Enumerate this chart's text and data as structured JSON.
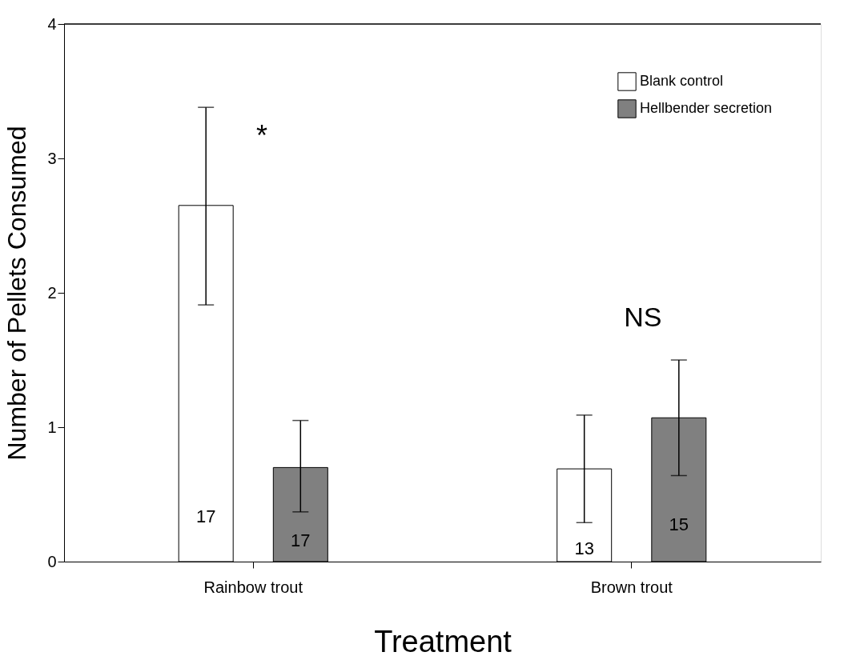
{
  "chart_data": {
    "type": "bar",
    "xlabel": "Treatment",
    "ylabel": "Number of Pellets Consumed",
    "categories": [
      "Rainbow trout",
      "Brown trout"
    ],
    "series": [
      {
        "name": "Blank control",
        "color": "#ffffff",
        "values": [
          2.65,
          0.69
        ],
        "errors": [
          [
            1.91,
            3.38
          ],
          [
            0.29,
            1.09
          ]
        ]
      },
      {
        "name": "Hellbender secretion",
        "color": "#808080",
        "values": [
          0.7,
          1.07
        ],
        "errors": [
          [
            0.37,
            1.05
          ],
          [
            0.64,
            1.5
          ]
        ]
      }
    ],
    "ylim": [
      0,
      4
    ],
    "yticks": [
      0,
      1,
      2,
      3,
      4
    ],
    "grid": false,
    "legend": "top right",
    "annotations": [
      "17",
      "17",
      "13",
      "15",
      "*",
      "NS"
    ]
  }
}
